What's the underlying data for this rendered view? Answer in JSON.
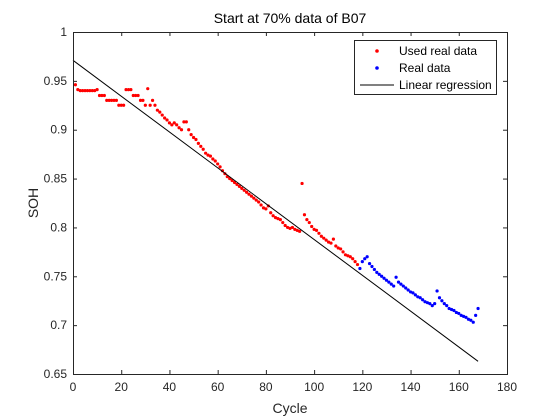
{
  "chart_data": {
    "type": "scatter",
    "title": "Start at 70% data of B07",
    "xlabel": "Cycle",
    "ylabel": "SOH",
    "xlim": [
      0,
      180
    ],
    "ylim": [
      0.65,
      1
    ],
    "xticks": [
      0,
      20,
      40,
      60,
      80,
      100,
      120,
      140,
      160,
      180
    ],
    "yticks": [
      0.65,
      0.7,
      0.75,
      0.8,
      0.85,
      0.9,
      0.95,
      1
    ],
    "xtick_labels": [
      "0",
      "20",
      "40",
      "60",
      "80",
      "100",
      "120",
      "140",
      "160",
      "180"
    ],
    "ytick_labels": [
      "0.65",
      "0.7",
      "0.75",
      "0.8",
      "0.85",
      "0.9",
      "0.95",
      "1"
    ],
    "grid": false,
    "legend_position": "top-right",
    "series": [
      {
        "name": "Used real data",
        "kind": "points",
        "color": "#ff0000",
        "x": [
          1,
          2,
          3,
          4,
          5,
          6,
          7,
          8,
          9,
          10,
          11,
          12,
          13,
          14,
          15,
          16,
          17,
          18,
          19,
          20,
          21,
          22,
          23,
          24,
          25,
          26,
          27,
          28,
          29,
          30,
          31,
          32,
          33,
          34,
          35,
          36,
          37,
          38,
          39,
          40,
          41,
          42,
          43,
          44,
          45,
          46,
          47,
          48,
          49,
          50,
          51,
          52,
          53,
          54,
          55,
          56,
          57,
          58,
          59,
          60,
          61,
          62,
          63,
          64,
          65,
          66,
          67,
          68,
          69,
          70,
          71,
          72,
          73,
          74,
          75,
          76,
          77,
          78,
          79,
          80,
          81,
          82,
          83,
          84,
          85,
          86,
          87,
          88,
          89,
          90,
          91,
          92,
          93,
          94,
          95,
          96,
          97,
          98,
          99,
          100,
          101,
          102,
          103,
          104,
          105,
          106,
          107,
          108,
          109,
          110,
          111,
          112,
          113,
          114,
          115,
          116,
          117,
          118
        ],
        "y": [
          0.946,
          0.941,
          0.94,
          0.94,
          0.94,
          0.94,
          0.94,
          0.94,
          0.94,
          0.941,
          0.935,
          0.935,
          0.935,
          0.93,
          0.93,
          0.93,
          0.93,
          0.93,
          0.925,
          0.925,
          0.925,
          0.941,
          0.941,
          0.941,
          0.935,
          0.935,
          0.935,
          0.93,
          0.93,
          0.925,
          0.942,
          0.925,
          0.93,
          0.925,
          0.92,
          0.918,
          0.915,
          0.912,
          0.91,
          0.907,
          0.905,
          0.907,
          0.905,
          0.902,
          0.9,
          0.908,
          0.908,
          0.9,
          0.895,
          0.892,
          0.89,
          0.886,
          0.883,
          0.88,
          0.876,
          0.874,
          0.873,
          0.87,
          0.868,
          0.865,
          0.862,
          0.858,
          0.855,
          0.852,
          0.85,
          0.848,
          0.846,
          0.844,
          0.842,
          0.84,
          0.838,
          0.836,
          0.834,
          0.832,
          0.83,
          0.828,
          0.826,
          0.823,
          0.82,
          0.819,
          0.822,
          0.815,
          0.812,
          0.81,
          0.809,
          0.808,
          0.805,
          0.802,
          0.8,
          0.799,
          0.8,
          0.798,
          0.797,
          0.796,
          0.845,
          0.813,
          0.808,
          0.805,
          0.801,
          0.798,
          0.797,
          0.794,
          0.791,
          0.789,
          0.787,
          0.785,
          0.784,
          0.788,
          0.781,
          0.779,
          0.778,
          0.775,
          0.772,
          0.771,
          0.77,
          0.768,
          0.765,
          0.762
        ]
      },
      {
        "name": "Real data",
        "kind": "points",
        "color": "#0000ff",
        "x": [
          119,
          120,
          121,
          122,
          123,
          124,
          125,
          126,
          127,
          128,
          129,
          130,
          131,
          132,
          133,
          134,
          135,
          136,
          137,
          138,
          139,
          140,
          141,
          142,
          143,
          144,
          145,
          146,
          147,
          148,
          149,
          150,
          151,
          152,
          153,
          154,
          155,
          156,
          157,
          158,
          159,
          160,
          161,
          162,
          163,
          164,
          165,
          166,
          167,
          168
        ],
        "y": [
          0.758,
          0.765,
          0.768,
          0.77,
          0.763,
          0.76,
          0.757,
          0.754,
          0.752,
          0.75,
          0.748,
          0.746,
          0.744,
          0.742,
          0.74,
          0.749,
          0.744,
          0.742,
          0.74,
          0.738,
          0.736,
          0.734,
          0.733,
          0.731,
          0.729,
          0.728,
          0.726,
          0.724,
          0.723,
          0.722,
          0.72,
          0.722,
          0.735,
          0.728,
          0.725,
          0.722,
          0.72,
          0.717,
          0.716,
          0.715,
          0.713,
          0.712,
          0.71,
          0.709,
          0.708,
          0.706,
          0.705,
          0.703,
          0.71,
          0.717
        ]
      },
      {
        "name": "Linear regression",
        "kind": "line",
        "color": "#000000",
        "x": [
          0,
          168
        ],
        "y": [
          0.971,
          0.663
        ]
      }
    ]
  }
}
